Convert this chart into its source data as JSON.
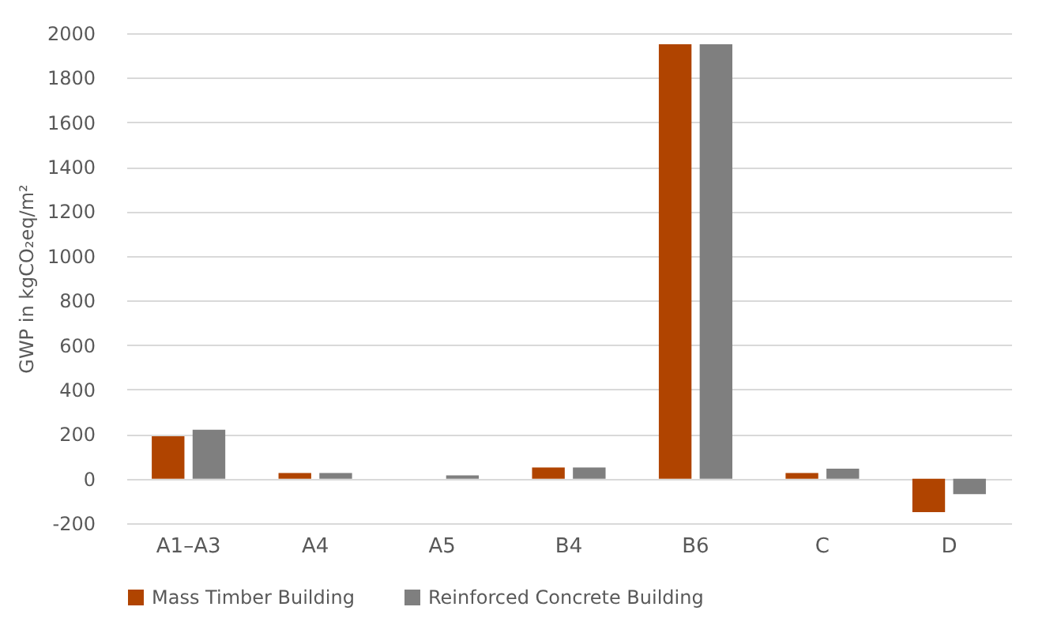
{
  "chart_data": {
    "type": "bar",
    "ylabel": "GWP in kgCO₂eq/m²",
    "categories": [
      "A1–A3",
      "A4",
      "A5",
      "B4",
      "B6",
      "C",
      "D"
    ],
    "series": [
      {
        "name": "Mass Timber Building",
        "color": "#b04400",
        "values": [
          190,
          25,
          0,
          50,
          1950,
          25,
          -150
        ]
      },
      {
        "name": "Reinforced Concrete Building",
        "color": "#7f7f7f",
        "values": [
          220,
          25,
          15,
          50,
          1950,
          45,
          -70
        ]
      }
    ],
    "ylim": [
      -200,
      2000
    ],
    "yticks": [
      -200,
      0,
      200,
      400,
      600,
      800,
      1000,
      1200,
      1400,
      1600,
      1800,
      2000
    ],
    "grid": "y",
    "legend": "bottom"
  }
}
